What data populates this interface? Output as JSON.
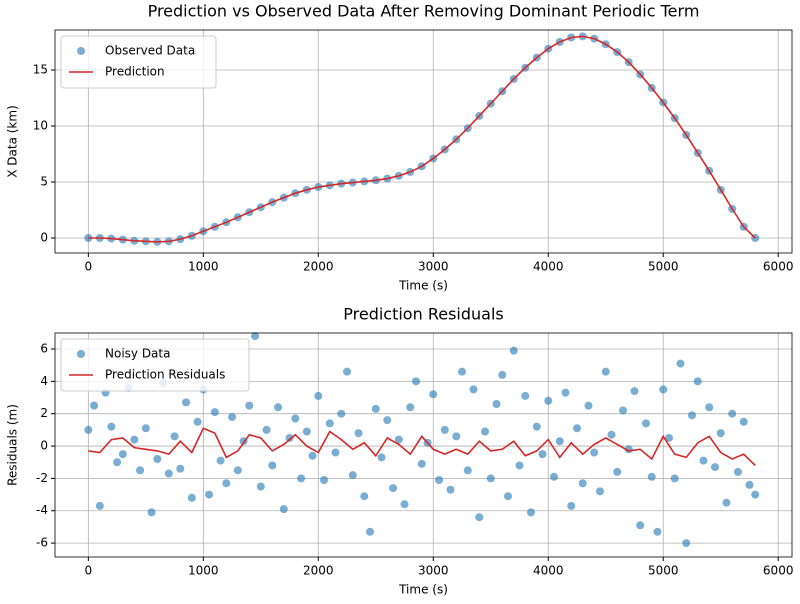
{
  "chart_data": [
    {
      "type": "line",
      "title": "Prediction vs Observed Data After Removing Dominant Periodic Term",
      "xlabel": "Time (s)",
      "ylabel": "X Data (km)",
      "xlim": [
        -290,
        6120
      ],
      "ylim": [
        -1.34,
        18.57
      ],
      "xticks": [
        0,
        1000,
        2000,
        3000,
        4000,
        5000,
        6000
      ],
      "yticks": [
        0,
        5,
        10,
        15
      ],
      "grid": true,
      "legend": "upper left",
      "series": [
        {
          "name": "Observed Data",
          "style": "scatter",
          "color": "#1f77b4",
          "x": [
            0,
            100,
            200,
            300,
            400,
            500,
            600,
            700,
            800,
            900,
            1000,
            1100,
            1200,
            1300,
            1400,
            1500,
            1600,
            1700,
            1800,
            1900,
            2000,
            2100,
            2200,
            2300,
            2400,
            2500,
            2600,
            2700,
            2800,
            2900,
            3000,
            3100,
            3200,
            3300,
            3400,
            3500,
            3600,
            3700,
            3800,
            3900,
            4000,
            4100,
            4200,
            4300,
            4400,
            4500,
            4600,
            4700,
            4800,
            4900,
            5000,
            5100,
            5200,
            5300,
            5400,
            5500,
            5600,
            5700,
            5800
          ],
          "values": [
            0,
            0,
            -0.05,
            -0.15,
            -0.25,
            -0.3,
            -0.35,
            -0.3,
            -0.1,
            0.2,
            0.6,
            1.0,
            1.4,
            1.85,
            2.3,
            2.75,
            3.2,
            3.6,
            4.0,
            4.3,
            4.55,
            4.7,
            4.85,
            4.95,
            5.05,
            5.15,
            5.3,
            5.55,
            5.9,
            6.4,
            7.1,
            7.9,
            8.8,
            9.8,
            10.9,
            12.0,
            13.1,
            14.2,
            15.2,
            16.1,
            16.9,
            17.5,
            17.9,
            18.0,
            17.8,
            17.3,
            16.6,
            15.7,
            14.6,
            13.4,
            12.1,
            10.7,
            9.2,
            7.6,
            6.0,
            4.3,
            2.6,
            1.0,
            0
          ]
        },
        {
          "name": "Prediction",
          "style": "line",
          "color": "#d62728",
          "x": [
            0,
            100,
            200,
            300,
            400,
            500,
            600,
            700,
            800,
            900,
            1000,
            1100,
            1200,
            1300,
            1400,
            1500,
            1600,
            1700,
            1800,
            1900,
            2000,
            2100,
            2200,
            2300,
            2400,
            2500,
            2600,
            2700,
            2800,
            2900,
            3000,
            3100,
            3200,
            3300,
            3400,
            3500,
            3600,
            3700,
            3800,
            3900,
            4000,
            4100,
            4200,
            4300,
            4400,
            4500,
            4600,
            4700,
            4800,
            4900,
            5000,
            5100,
            5200,
            5300,
            5400,
            5500,
            5600,
            5700,
            5800
          ],
          "values": [
            0,
            0,
            -0.05,
            -0.15,
            -0.25,
            -0.3,
            -0.35,
            -0.3,
            -0.1,
            0.2,
            0.6,
            1.0,
            1.4,
            1.85,
            2.3,
            2.75,
            3.2,
            3.6,
            4.0,
            4.3,
            4.55,
            4.7,
            4.85,
            4.95,
            5.05,
            5.15,
            5.3,
            5.55,
            5.9,
            6.4,
            7.1,
            7.9,
            8.8,
            9.8,
            10.9,
            12.0,
            13.1,
            14.2,
            15.2,
            16.1,
            16.9,
            17.5,
            17.9,
            18.0,
            17.8,
            17.3,
            16.6,
            15.7,
            14.6,
            13.4,
            12.1,
            10.7,
            9.2,
            7.6,
            6.0,
            4.3,
            2.6,
            1.0,
            0
          ]
        }
      ]
    },
    {
      "type": "line",
      "title": "Prediction Residuals",
      "xlabel": "Time (s)",
      "ylabel": "Residuals (m)",
      "xlim": [
        -290,
        6120
      ],
      "ylim": [
        -6.86,
        6.99
      ],
      "xticks": [
        0,
        1000,
        2000,
        3000,
        4000,
        5000,
        6000
      ],
      "yticks": [
        -6,
        -4,
        -2,
        0,
        2,
        4,
        6
      ],
      "grid": true,
      "legend": "upper left",
      "series": [
        {
          "name": "Noisy Data",
          "style": "scatter",
          "color": "#1f77b4",
          "x": [
            0,
            50,
            100,
            150,
            200,
            250,
            300,
            350,
            400,
            450,
            500,
            550,
            600,
            650,
            700,
            750,
            800,
            850,
            900,
            950,
            1000,
            1050,
            1100,
            1150,
            1200,
            1250,
            1300,
            1350,
            1400,
            1450,
            1500,
            1550,
            1600,
            1650,
            1700,
            1750,
            1800,
            1850,
            1900,
            1950,
            2000,
            2050,
            2100,
            2150,
            2200,
            2250,
            2300,
            2350,
            2400,
            2450,
            2500,
            2550,
            2600,
            2650,
            2700,
            2750,
            2800,
            2850,
            2900,
            2950,
            3000,
            3050,
            3100,
            3150,
            3200,
            3250,
            3300,
            3350,
            3400,
            3450,
            3500,
            3550,
            3600,
            3650,
            3700,
            3750,
            3800,
            3850,
            3900,
            3950,
            4000,
            4050,
            4100,
            4150,
            4200,
            4250,
            4300,
            4350,
            4400,
            4450,
            4500,
            4550,
            4600,
            4650,
            4700,
            4750,
            4800,
            4850,
            4900,
            4950,
            5000,
            5050,
            5100,
            5150,
            5200,
            5250,
            5300,
            5350,
            5400,
            5450,
            5500,
            5550,
            5600,
            5650,
            5700,
            5750,
            5800
          ],
          "values": [
            1.0,
            2.5,
            -3.7,
            3.3,
            1.2,
            -1.0,
            -0.5,
            3.6,
            0.4,
            -1.5,
            1.1,
            -4.1,
            -0.8,
            3.9,
            -1.7,
            0.6,
            -1.4,
            2.7,
            -3.2,
            1.5,
            3.5,
            -3.0,
            2.1,
            -0.9,
            -2.3,
            1.8,
            -1.5,
            0.3,
            2.5,
            6.8,
            -2.5,
            1.0,
            -1.2,
            2.4,
            -3.9,
            0.5,
            1.7,
            -2.0,
            0.9,
            -0.6,
            3.1,
            -2.1,
            1.4,
            -0.4,
            2.0,
            4.6,
            -1.8,
            0.8,
            -3.1,
            -5.3,
            2.3,
            -0.7,
            1.6,
            -2.6,
            0.4,
            -3.6,
            2.4,
            4.0,
            -1.1,
            0.2,
            3.2,
            -2.1,
            1.0,
            -2.7,
            0.6,
            4.6,
            -1.5,
            3.5,
            -4.4,
            0.9,
            -2.0,
            2.6,
            4.4,
            -3.1,
            5.9,
            -1.2,
            3.1,
            -4.1,
            1.2,
            -0.5,
            2.8,
            -1.9,
            0.3,
            3.3,
            -3.7,
            1.1,
            -2.3,
            2.5,
            -0.4,
            -2.8,
            4.6,
            0.7,
            -1.6,
            2.2,
            -0.2,
            3.4,
            -4.9,
            1.4,
            -1.9,
            -5.3,
            3.5,
            0.5,
            -2.0,
            5.1,
            -6.0,
            1.9,
            4.0,
            -0.9,
            2.4,
            -1.3,
            0.8,
            -3.5,
            2.0,
            -1.6,
            1.5,
            -2.4,
            -3.0
          ]
        },
        {
          "name": "Prediction Residuals",
          "style": "line",
          "color": "#d62728",
          "x": [
            0,
            100,
            200,
            300,
            400,
            500,
            600,
            700,
            800,
            900,
            1000,
            1100,
            1200,
            1300,
            1400,
            1500,
            1600,
            1700,
            1800,
            1900,
            2000,
            2100,
            2200,
            2300,
            2400,
            2500,
            2600,
            2700,
            2800,
            2900,
            3000,
            3100,
            3200,
            3300,
            3400,
            3500,
            3600,
            3700,
            3800,
            3900,
            4000,
            4100,
            4200,
            4300,
            4400,
            4500,
            4600,
            4700,
            4800,
            4900,
            5000,
            5100,
            5200,
            5300,
            5400,
            5500,
            5600,
            5700,
            5800
          ],
          "values": [
            -0.3,
            -0.4,
            0.4,
            0.5,
            -0.1,
            -0.2,
            -0.3,
            -0.5,
            0.3,
            -0.4,
            1.1,
            0.8,
            -0.7,
            -0.3,
            0.7,
            0.5,
            -0.3,
            0.1,
            0.7,
            0.0,
            -0.4,
            0.9,
            0.4,
            -0.2,
            0.2,
            -0.6,
            0.5,
            0.1,
            -0.5,
            0.6,
            -0.2,
            -0.5,
            -0.2,
            -0.5,
            0.3,
            -0.3,
            -0.2,
            0.3,
            -0.6,
            -0.3,
            0.4,
            -0.7,
            0.2,
            -0.5,
            0.1,
            0.5,
            0.1,
            -0.3,
            -0.2,
            -0.8,
            0.6,
            -0.5,
            -0.7,
            0.2,
            0.6,
            -0.4,
            -0.8,
            -0.5,
            -1.2
          ]
        }
      ]
    }
  ]
}
